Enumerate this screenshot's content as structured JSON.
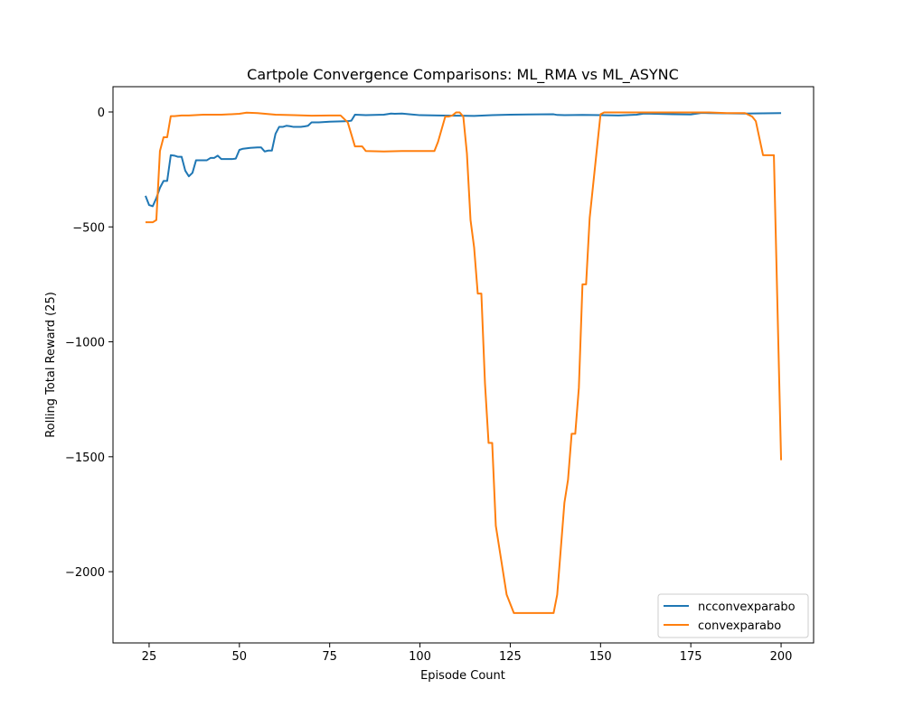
{
  "chart_data": {
    "type": "line",
    "title": "Cartpole Convergence Comparisons: ML_RMA vs ML_ASYNC",
    "xlabel": "Episode Count",
    "ylabel": "Rolling Total Reward (25)",
    "xlim": [
      15,
      209
    ],
    "ylim": [
      -2310,
      110
    ],
    "xticks": [
      25,
      50,
      75,
      100,
      125,
      150,
      175,
      200
    ],
    "xtick_labels": [
      "25",
      "50",
      "75",
      "100",
      "125",
      "150",
      "175",
      "200"
    ],
    "yticks": [
      0,
      -500,
      -1000,
      -1500,
      -2000
    ],
    "ytick_labels": [
      "0",
      "−500",
      "−1000",
      "−1500",
      "−2000"
    ],
    "grid": false,
    "legend_position": "lower-right",
    "colors": [
      "#1f77b4",
      "#ff7f0e"
    ],
    "series": [
      {
        "name": "ncconvexparabo",
        "x": [
          24,
          25,
          26,
          27,
          28,
          29,
          30,
          31,
          32,
          33,
          34,
          35,
          36,
          37,
          38,
          39,
          40,
          41,
          42,
          43,
          44,
          45,
          46,
          47,
          48,
          49,
          50,
          51,
          52,
          53,
          54,
          55,
          56,
          57,
          58,
          59,
          60,
          61,
          62,
          63,
          64,
          65,
          66,
          67,
          68,
          69,
          70,
          72,
          75,
          80,
          81,
          82,
          85,
          90,
          92,
          93,
          95,
          97,
          100,
          105,
          110,
          115,
          120,
          125,
          130,
          137,
          138,
          140,
          145,
          150,
          155,
          160,
          162,
          165,
          170,
          175,
          178,
          180,
          185,
          190,
          195,
          200
        ],
        "y": [
          -365,
          -405,
          -410,
          -375,
          -330,
          -300,
          -300,
          -188,
          -190,
          -195,
          -195,
          -255,
          -280,
          -265,
          -210,
          -210,
          -210,
          -210,
          -200,
          -200,
          -190,
          -205,
          -205,
          -205,
          -205,
          -203,
          -165,
          -160,
          -158,
          -156,
          -155,
          -154,
          -154,
          -172,
          -168,
          -168,
          -95,
          -65,
          -65,
          -60,
          -62,
          -65,
          -65,
          -65,
          -63,
          -60,
          -45,
          -45,
          -42,
          -40,
          -38,
          -12,
          -14,
          -12,
          -7,
          -8,
          -7,
          -10,
          -14,
          -15,
          -16,
          -17,
          -14,
          -12,
          -11,
          -10,
          -13,
          -14,
          -13,
          -14,
          -15,
          -12,
          -7,
          -8,
          -10,
          -11,
          -4,
          -5,
          -6,
          -7,
          -6,
          -5
        ]
      },
      {
        "name": "convexparabo",
        "x": [
          24,
          26,
          27,
          28,
          29,
          30,
          31,
          32,
          34,
          36,
          40,
          45,
          50,
          52,
          55,
          60,
          65,
          70,
          75,
          78,
          80,
          82,
          84,
          85,
          90,
          95,
          100,
          104,
          105,
          107,
          108,
          109,
          110,
          111,
          112,
          113,
          114,
          115,
          116,
          117,
          118,
          119,
          120,
          121,
          122,
          124,
          126,
          130,
          134,
          137,
          138,
          140,
          141,
          142,
          143,
          144,
          145,
          146,
          147,
          150,
          151,
          155,
          160,
          170,
          175,
          180,
          185,
          190,
          192,
          193,
          195,
          198,
          200
        ],
        "y": [
          -480,
          -480,
          -470,
          -170,
          -110,
          -110,
          -18,
          -18,
          -15,
          -15,
          -12,
          -12,
          -8,
          -3,
          -5,
          -12,
          -14,
          -16,
          -15,
          -15,
          -45,
          -150,
          -150,
          -170,
          -172,
          -170,
          -170,
          -170,
          -130,
          -20,
          -20,
          -15,
          -2,
          -2,
          -20,
          -180,
          -470,
          -590,
          -790,
          -790,
          -1180,
          -1440,
          -1440,
          -1800,
          -1900,
          -2100,
          -2180,
          -2180,
          -2180,
          -2180,
          -2100,
          -1700,
          -1600,
          -1400,
          -1400,
          -1200,
          -750,
          -750,
          -460,
          -10,
          -2,
          -2,
          -2,
          -2,
          -2,
          -2,
          -5,
          -5,
          -20,
          -40,
          -188,
          -188,
          -1515
        ]
      }
    ]
  }
}
